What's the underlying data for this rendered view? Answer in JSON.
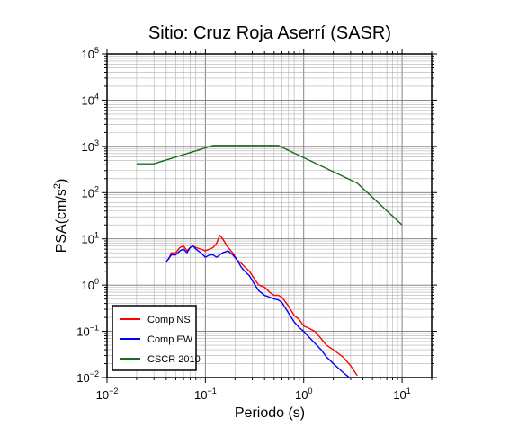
{
  "chart_data": {
    "type": "line",
    "title": "Sitio: Cruz Roja Aserrí (SASR)",
    "xlabel": "Periodo (s)",
    "ylabel": {
      "base": "PSA(cm/s",
      "sup": "2",
      "end": ")"
    },
    "x_scale": "log",
    "y_scale": "log",
    "xlim": [
      0.01,
      20
    ],
    "ylim": [
      0.01,
      100000
    ],
    "grid": true,
    "legend_position": "bottom-left",
    "x_ticks": [
      {
        "value": 0.01,
        "base": "10",
        "exp": "−2"
      },
      {
        "value": 0.1,
        "base": "10",
        "exp": "−1"
      },
      {
        "value": 1,
        "base": "10",
        "exp": "0"
      },
      {
        "value": 10,
        "base": "10",
        "exp": "1"
      }
    ],
    "y_ticks": [
      {
        "value": 0.01,
        "base": "10",
        "exp": "−2"
      },
      {
        "value": 0.1,
        "base": "10",
        "exp": "−1"
      },
      {
        "value": 1,
        "base": "10",
        "exp": "0"
      },
      {
        "value": 10,
        "base": "10",
        "exp": "1"
      },
      {
        "value": 100,
        "base": "10",
        "exp": "2"
      },
      {
        "value": 1000,
        "base": "10",
        "exp": "3"
      },
      {
        "value": 10000,
        "base": "10",
        "exp": "4"
      },
      {
        "value": 100000,
        "base": "10",
        "exp": "5"
      }
    ],
    "series": [
      {
        "name": "Comp NS",
        "color": "#ff0000",
        "points": [
          [
            0.042,
            3.5
          ],
          [
            0.045,
            5.0
          ],
          [
            0.05,
            5.0
          ],
          [
            0.055,
            6.5
          ],
          [
            0.06,
            7.0
          ],
          [
            0.065,
            5.5
          ],
          [
            0.07,
            6.5
          ],
          [
            0.075,
            7.0
          ],
          [
            0.08,
            6.5
          ],
          [
            0.09,
            6.0
          ],
          [
            0.1,
            5.5
          ],
          [
            0.11,
            6.0
          ],
          [
            0.12,
            6.5
          ],
          [
            0.13,
            8.0
          ],
          [
            0.14,
            12.0
          ],
          [
            0.15,
            10.0
          ],
          [
            0.17,
            6.5
          ],
          [
            0.19,
            5.0
          ],
          [
            0.21,
            3.5
          ],
          [
            0.23,
            3.0
          ],
          [
            0.25,
            2.5
          ],
          [
            0.28,
            2.0
          ],
          [
            0.32,
            1.3
          ],
          [
            0.35,
            1.0
          ],
          [
            0.4,
            0.9
          ],
          [
            0.45,
            0.7
          ],
          [
            0.5,
            0.6
          ],
          [
            0.55,
            0.6
          ],
          [
            0.6,
            0.55
          ],
          [
            0.7,
            0.35
          ],
          [
            0.8,
            0.22
          ],
          [
            0.9,
            0.18
          ],
          [
            1.0,
            0.13
          ],
          [
            1.1,
            0.12
          ],
          [
            1.3,
            0.1
          ],
          [
            1.5,
            0.07
          ],
          [
            1.7,
            0.05
          ],
          [
            2.0,
            0.04
          ],
          [
            2.5,
            0.028
          ],
          [
            3.0,
            0.018
          ],
          [
            3.5,
            0.011
          ]
        ]
      },
      {
        "name": "Comp EW",
        "color": "#0000ff",
        "points": [
          [
            0.04,
            3.2
          ],
          [
            0.045,
            4.5
          ],
          [
            0.05,
            4.5
          ],
          [
            0.055,
            5.5
          ],
          [
            0.06,
            6.0
          ],
          [
            0.065,
            5.0
          ],
          [
            0.07,
            6.5
          ],
          [
            0.075,
            7.0
          ],
          [
            0.08,
            6.0
          ],
          [
            0.09,
            5.0
          ],
          [
            0.1,
            4.0
          ],
          [
            0.11,
            4.5
          ],
          [
            0.12,
            4.5
          ],
          [
            0.13,
            4.0
          ],
          [
            0.15,
            5.0
          ],
          [
            0.17,
            5.5
          ],
          [
            0.19,
            4.5
          ],
          [
            0.21,
            3.5
          ],
          [
            0.23,
            2.5
          ],
          [
            0.25,
            2.0
          ],
          [
            0.28,
            1.6
          ],
          [
            0.32,
            1.0
          ],
          [
            0.35,
            0.75
          ],
          [
            0.4,
            0.6
          ],
          [
            0.45,
            0.55
          ],
          [
            0.5,
            0.5
          ],
          [
            0.55,
            0.48
          ],
          [
            0.6,
            0.42
          ],
          [
            0.7,
            0.25
          ],
          [
            0.8,
            0.16
          ],
          [
            0.9,
            0.12
          ],
          [
            1.0,
            0.1
          ],
          [
            1.1,
            0.08
          ],
          [
            1.3,
            0.055
          ],
          [
            1.5,
            0.04
          ],
          [
            1.7,
            0.028
          ],
          [
            2.0,
            0.02
          ],
          [
            2.5,
            0.013
          ],
          [
            3.0,
            0.0095
          ]
        ]
      },
      {
        "name": "CSCR 2010",
        "color": "#1a6b1a",
        "points": [
          [
            0.02,
            420
          ],
          [
            0.03,
            420
          ],
          [
            0.12,
            1050
          ],
          [
            0.55,
            1050
          ],
          [
            3.5,
            160
          ],
          [
            10,
            20
          ]
        ]
      }
    ]
  }
}
